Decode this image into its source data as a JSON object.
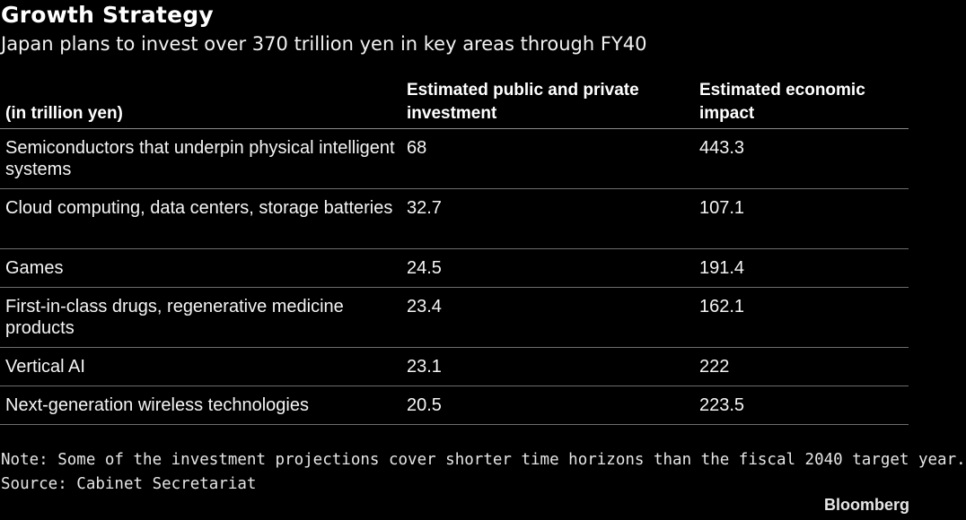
{
  "title": "Growth Strategy",
  "subtitle": "Japan plans to invest over 370 trillion yen in key areas through FY40",
  "chart_data": {
    "type": "table",
    "columns": [
      "(in trillion yen)",
      "Estimated public and private investment",
      "Estimated economic impact"
    ],
    "rows": [
      {
        "label": "Semiconductors that underpin physical intelligent systems",
        "investment": "68",
        "impact": "443.3"
      },
      {
        "label": "Cloud computing, data centers, storage batteries",
        "investment": "32.7",
        "impact": "107.1"
      },
      {
        "label": "Games",
        "investment": "24.5",
        "impact": "191.4"
      },
      {
        "label": "First-in-class drugs, regenerative medicine products",
        "investment": "23.4",
        "impact": "162.1"
      },
      {
        "label": "Vertical AI",
        "investment": "23.1",
        "impact": "222"
      },
      {
        "label": "Next-generation wireless technologies",
        "investment": "20.5",
        "impact": "223.5"
      }
    ]
  },
  "note": "Note: Some of the investment projections cover shorter time horizons than the fiscal 2040 target year.",
  "source": "Source: Cabinet Secretariat",
  "brand": "Bloomberg"
}
